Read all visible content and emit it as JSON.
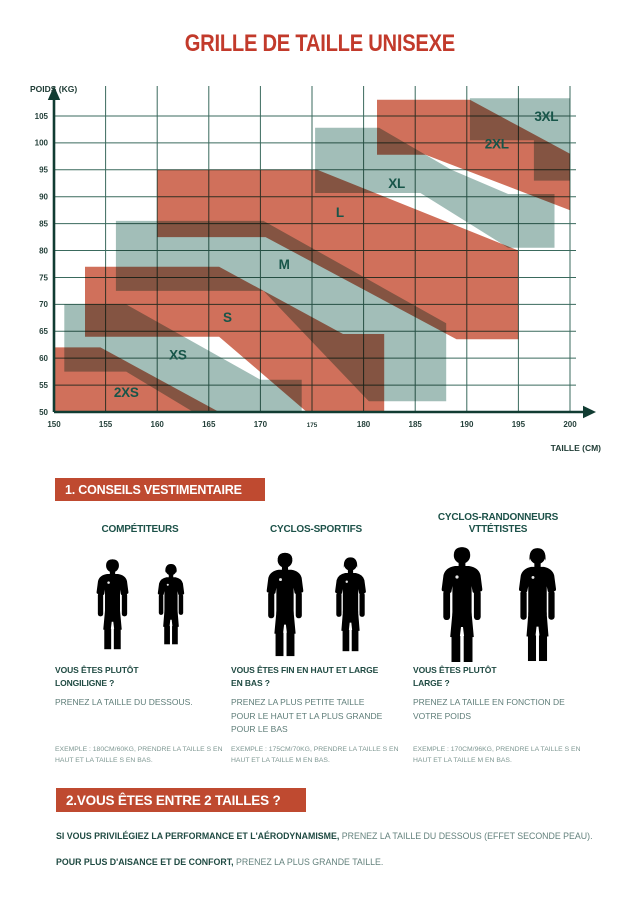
{
  "page": {
    "title": "GRILLE DE TAILLE UNISEXE"
  },
  "chart_data": {
    "type": "area",
    "title": "GRILLE DE TAILLE UNISEXE",
    "xlabel": "TAILLE (CM)",
    "ylabel": "POIDS (KG)",
    "xlim": [
      150,
      202
    ],
    "ylim": [
      50,
      110.5
    ],
    "grid": true,
    "x_ticks": [
      150,
      155,
      160,
      165,
      170,
      175,
      180,
      185,
      190,
      195,
      200
    ],
    "x_tick_small": 175,
    "y_ticks": [
      50,
      55,
      60,
      65,
      70,
      75,
      80,
      85,
      90,
      95,
      100,
      105
    ],
    "colors": {
      "salmon": "#D0705B",
      "teal": "#A2BEB8",
      "grid": "#3A6A5D",
      "axis": "#113C32",
      "band_label": "#175549",
      "title_red": "#C23A2B",
      "banner_red": "#BF4A30"
    },
    "bands": [
      {
        "size": "2XS",
        "color": "salmon",
        "label_at": [
          157,
          53.5
        ],
        "points": [
          [
            150,
            62
          ],
          [
            154.5,
            62
          ],
          [
            166,
            50
          ],
          [
            150,
            50
          ]
        ]
      },
      {
        "size": "XS",
        "color": "teal",
        "label_at": [
          162,
          60.5
        ],
        "points": [
          [
            151,
            70
          ],
          [
            157,
            70
          ],
          [
            170,
            56
          ],
          [
            174,
            56
          ],
          [
            174,
            50
          ],
          [
            163.5,
            50
          ],
          [
            157,
            57.5
          ],
          [
            151,
            57.5
          ]
        ]
      },
      {
        "size": "S",
        "color": "salmon",
        "label_at": [
          166.8,
          67.5
        ],
        "points": [
          [
            153,
            77
          ],
          [
            166,
            77
          ],
          [
            178,
            64.5
          ],
          [
            182,
            64.5
          ],
          [
            182,
            50
          ],
          [
            174.5,
            50
          ],
          [
            166,
            64
          ],
          [
            153,
            64
          ]
        ]
      },
      {
        "size": "M",
        "color": "teal",
        "label_at": [
          172.3,
          77.3
        ],
        "points": [
          [
            156,
            85.5
          ],
          [
            170.3,
            85.5
          ],
          [
            188,
            66.5
          ],
          [
            188,
            52
          ],
          [
            180.5,
            52
          ],
          [
            170.3,
            72.5
          ],
          [
            156,
            72.5
          ]
        ]
      },
      {
        "size": "L",
        "color": "salmon",
        "label_at": [
          177.7,
          87
        ],
        "points": [
          [
            160,
            95
          ],
          [
            175.5,
            95
          ],
          [
            195,
            80
          ],
          [
            195,
            63.5
          ],
          [
            189,
            63.5
          ],
          [
            170.5,
            82.5
          ],
          [
            160,
            82.5
          ]
        ]
      },
      {
        "size": "XL",
        "color": "teal",
        "label_at": [
          183.2,
          92.4
        ],
        "points": [
          [
            175.3,
            102.8
          ],
          [
            181.5,
            102.8
          ],
          [
            188.5,
            95
          ],
          [
            194,
            90.5
          ],
          [
            198.5,
            90.5
          ],
          [
            198.5,
            80.5
          ],
          [
            194,
            80.5
          ],
          [
            185.5,
            90.7
          ],
          [
            175.3,
            90.7
          ]
        ]
      },
      {
        "size": "2XL",
        "color": "salmon",
        "label_at": [
          192.9,
          99.7
        ],
        "points": [
          [
            181.3,
            108
          ],
          [
            190.3,
            108
          ],
          [
            200,
            98
          ],
          [
            200,
            87.5
          ],
          [
            186,
            97.8
          ],
          [
            181.3,
            97.8
          ]
        ]
      },
      {
        "size": "3XL",
        "color": "teal",
        "label_at": [
          197.7,
          104.8
        ],
        "points": [
          [
            190.3,
            108.3
          ],
          [
            200,
            108.3
          ],
          [
            200,
            93
          ],
          [
            196.5,
            93
          ],
          [
            196.5,
            100.5
          ],
          [
            190.3,
            100.5
          ]
        ]
      }
    ]
  },
  "section1": {
    "heading": "1. CONSEILS VESTIMENTAIRE",
    "columns": [
      {
        "header_line1": "COMPÉTITEURS",
        "header_line2": "",
        "question_line1": "VOUS ÊTES PLUTÔT",
        "question_line2": "LONGILIGNE ?",
        "advice": "PRENEZ LA TAILLE DU DESSOUS.",
        "example": "EXEMPLE : 180CM/60KG, PRENDRE LA TAILLE S EN HAUT ET LA TAILLE S EN BAS."
      },
      {
        "header_line1": "CYCLOS-SPORTIFS",
        "header_line2": "",
        "question_line1": "VOUS ÊTES FIN EN HAUT ET LARGE",
        "question_line2": "EN BAS ?",
        "advice": "PRENEZ LA PLUS PETITE TAILLE POUR LE HAUT ET LA PLUS GRANDE POUR LE BAS",
        "example": "EXEMPLE : 175CM/70KG, PRENDRE LA TAILLE S EN HAUT ET LA TAILLE M EN BAS."
      },
      {
        "header_line1": "CYCLOS-RANDONNEURS",
        "header_line2": "VTTÉTISTES",
        "question_line1": "VOUS ÊTES PLUTÔT",
        "question_line2": "LARGE ?",
        "advice": "PRENEZ LA TAILLE EN FONCTION DE VOTRE POIDS",
        "example": "EXEMPLE : 170CM/96KG, PRENDRE LA TAILLE S EN HAUT ET LA TAILLE M EN BAS."
      }
    ]
  },
  "section2": {
    "heading": "2.VOUS ÊTES ENTRE 2 TAILLES ?",
    "lines": [
      {
        "bold": "SI VOUS PRIVILÉGIEZ LA PERFORMANCE ET L'AÉRODYNAMISME,",
        "rest": " PRENEZ LA TAILLE DU DESSOUS (EFFET SECONDE PEAU)."
      },
      {
        "bold": "POUR PLUS D'AISANCE ET DE CONFORT,",
        "rest": " PRENEZ LA PLUS GRANDE TAILLE."
      }
    ]
  }
}
